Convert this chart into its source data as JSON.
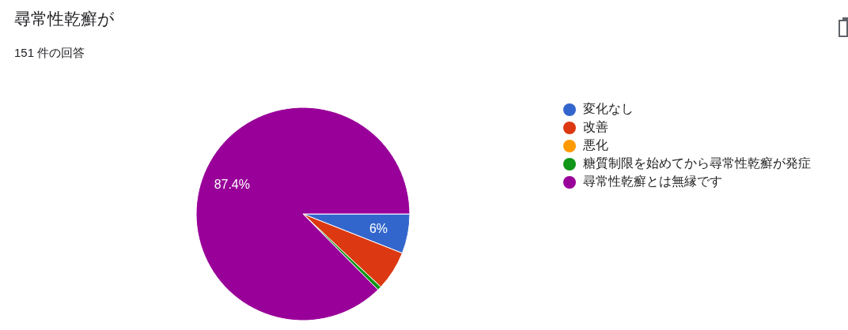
{
  "chart_data": {
    "type": "pie",
    "title": "尋常性乾癬が",
    "subtitle": "151 件の回答",
    "categories": [
      "変化なし",
      "改善",
      "悪化",
      "糖質制限を始めてから尋常性乾癬が発症",
      "尋常性乾癬とは無縁です"
    ],
    "values": [
      6,
      6,
      0,
      0.6,
      87.4
    ],
    "colors": [
      "#3366cc",
      "#dc3912",
      "#ff9900",
      "#109618",
      "#990099"
    ],
    "value_labels": [
      "6%",
      null,
      null,
      null,
      "87.4%"
    ],
    "legend": "right"
  }
}
